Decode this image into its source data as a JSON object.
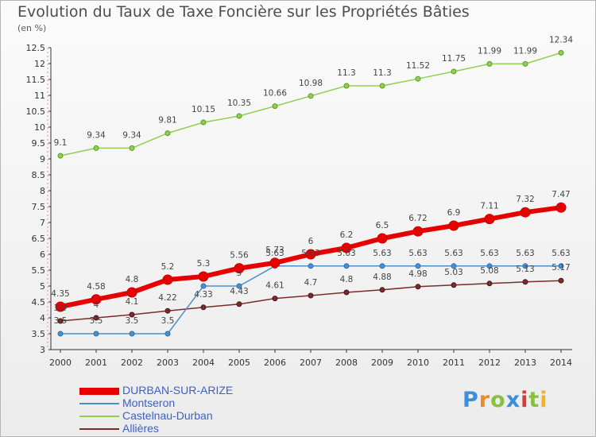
{
  "title": "Evolution du Taux de Taxe Foncière sur les Propriétés Bâties",
  "unit_label": "(en %)",
  "logo": {
    "text": "Proxiti",
    "letters": [
      {
        "ch": "P",
        "color": "#3b8fd8"
      },
      {
        "ch": "r",
        "color": "#f08a24"
      },
      {
        "ch": "o",
        "color": "#8bbf3f"
      },
      {
        "ch": "x",
        "color": "#3b8fd8"
      },
      {
        "ch": "i",
        "color": "#d93b3b"
      },
      {
        "ch": "t",
        "color": "#8bbf3f"
      },
      {
        "ch": "i",
        "color": "#f0b323"
      }
    ]
  },
  "chart_data": {
    "type": "line",
    "title": "Evolution du Taux de Taxe Foncière sur les Propriétés Bâties",
    "ylabel": "(en %)",
    "xlabel": "",
    "x": [
      "2000",
      "2001",
      "2002",
      "2003",
      "2004",
      "2005",
      "2006",
      "2007",
      "2008",
      "2009",
      "2010",
      "2011",
      "2012",
      "2013",
      "2014"
    ],
    "ylim": [
      3,
      12.5
    ],
    "yticks": [
      "3",
      "3.5",
      "4",
      "4.5",
      "5",
      "5.5",
      "6",
      "6.5",
      "7",
      "7.5",
      "8",
      "8.5",
      "9",
      "9.5",
      "10",
      "10.5",
      "11",
      "11.5",
      "12",
      "12.5"
    ],
    "grid": false,
    "legend_position": "bottom-left",
    "series": [
      {
        "name": "DURBAN-SUR-ARIZE",
        "color": "#e60000",
        "values": [
          4.35,
          4.58,
          4.8,
          5.2,
          5.3,
          5.56,
          5.73,
          6,
          6.2,
          6.5,
          6.72,
          6.9,
          7.11,
          7.32,
          7.47
        ],
        "labels": [
          "4.35",
          "4.58",
          "4.8",
          "5.2",
          "5.3",
          "5.56",
          "5.73",
          "6",
          "6.2",
          "6.5",
          "6.72",
          "6.9",
          "7.11",
          "7.32",
          "7.47"
        ]
      },
      {
        "name": "Montseron",
        "color": "#4d8fcc",
        "values": [
          3.5,
          3.5,
          3.5,
          3.5,
          5,
          5,
          5.63,
          5.63,
          5.63,
          5.63,
          5.63,
          5.63,
          5.63,
          5.63,
          5.63
        ],
        "labels": [
          "3.5",
          "3.5",
          "3.5",
          "3.5",
          "",
          "5",
          "5.63",
          "5.63",
          "5.63",
          "5.63",
          "5.63",
          "5.63",
          "5.63",
          "5.63",
          "5.63"
        ]
      },
      {
        "name": "Castelnau-Durban",
        "color": "#8fd14f",
        "values": [
          9.1,
          9.34,
          9.34,
          9.81,
          10.15,
          10.35,
          10.66,
          10.98,
          11.3,
          11.3,
          11.52,
          11.75,
          11.99,
          11.99,
          12.34
        ],
        "labels": [
          "9.1",
          "9.34",
          "9.34",
          "9.81",
          "10.15",
          "10.35",
          "10.66",
          "10.98",
          "11.3",
          "11.3",
          "11.52",
          "11.75",
          "11.99",
          "11.99",
          "12.34"
        ]
      },
      {
        "name": "Allières",
        "color": "#7a2b2b",
        "values": [
          3.9,
          4,
          4.1,
          4.22,
          4.33,
          4.43,
          4.61,
          4.7,
          4.8,
          4.88,
          4.98,
          5.03,
          5.08,
          5.13,
          5.17
        ],
        "labels": [
          "3.9",
          "4",
          "4.1",
          "4.22",
          "4.33",
          "4.43",
          "4.61",
          "4.7",
          "4.8",
          "4.88",
          "4.98",
          "5.03",
          "5.08",
          "5.13",
          "5.17"
        ]
      }
    ]
  }
}
